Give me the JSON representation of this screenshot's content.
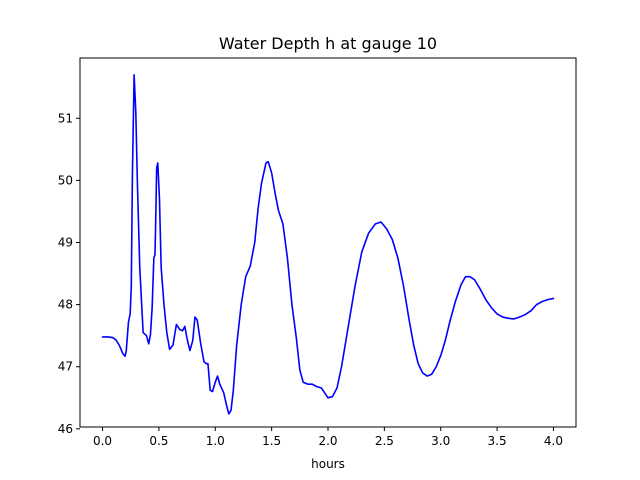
{
  "chart_data": {
    "type": "line",
    "title": "Water Depth h at gauge 10",
    "xlabel": "hours",
    "ylabel": "",
    "xlim": [
      -0.2,
      4.2
    ],
    "ylim": [
      46.03,
      51.97
    ],
    "x_ticks": [
      0.0,
      0.5,
      1.0,
      1.5,
      2.0,
      2.5,
      3.0,
      3.5,
      4.0
    ],
    "x_tick_labels": [
      "0.0",
      "0.5",
      "1.0",
      "1.5",
      "2.0",
      "2.5",
      "3.0",
      "3.5",
      "4.0"
    ],
    "y_ticks": [
      46,
      47,
      48,
      49,
      50,
      51
    ],
    "y_tick_labels": [
      "46",
      "47",
      "48",
      "49",
      "50",
      "51"
    ],
    "grid": false,
    "series": [
      {
        "color": "#0000ff",
        "points": [
          [
            0.0,
            47.48
          ],
          [
            0.05,
            47.48
          ],
          [
            0.09,
            47.47
          ],
          [
            0.12,
            47.43
          ],
          [
            0.15,
            47.34
          ],
          [
            0.18,
            47.21
          ],
          [
            0.2,
            47.17
          ],
          [
            0.21,
            47.25
          ],
          [
            0.23,
            47.72
          ],
          [
            0.245,
            47.85
          ],
          [
            0.255,
            48.3
          ],
          [
            0.265,
            50.1
          ],
          [
            0.28,
            51.7
          ],
          [
            0.295,
            51.1
          ],
          [
            0.31,
            49.9
          ],
          [
            0.33,
            48.6
          ],
          [
            0.36,
            47.55
          ],
          [
            0.39,
            47.5
          ],
          [
            0.41,
            47.37
          ],
          [
            0.425,
            47.52
          ],
          [
            0.44,
            47.95
          ],
          [
            0.455,
            48.75
          ],
          [
            0.465,
            48.8
          ],
          [
            0.47,
            49.2
          ],
          [
            0.48,
            50.2
          ],
          [
            0.49,
            50.28
          ],
          [
            0.505,
            49.7
          ],
          [
            0.52,
            48.6
          ],
          [
            0.545,
            48.0
          ],
          [
            0.57,
            47.55
          ],
          [
            0.595,
            47.28
          ],
          [
            0.625,
            47.35
          ],
          [
            0.655,
            47.68
          ],
          [
            0.685,
            47.6
          ],
          [
            0.71,
            47.58
          ],
          [
            0.73,
            47.65
          ],
          [
            0.75,
            47.45
          ],
          [
            0.775,
            47.26
          ],
          [
            0.8,
            47.42
          ],
          [
            0.82,
            47.8
          ],
          [
            0.84,
            47.75
          ],
          [
            0.87,
            47.38
          ],
          [
            0.9,
            47.08
          ],
          [
            0.92,
            47.05
          ],
          [
            0.935,
            47.05
          ],
          [
            0.955,
            46.62
          ],
          [
            0.975,
            46.6
          ],
          [
            1.0,
            46.75
          ],
          [
            1.02,
            46.85
          ],
          [
            1.04,
            46.72
          ],
          [
            1.075,
            46.58
          ],
          [
            1.1,
            46.38
          ],
          [
            1.12,
            46.24
          ],
          [
            1.14,
            46.3
          ],
          [
            1.16,
            46.62
          ],
          [
            1.19,
            47.35
          ],
          [
            1.23,
            48.0
          ],
          [
            1.27,
            48.45
          ],
          [
            1.31,
            48.62
          ],
          [
            1.35,
            49.0
          ],
          [
            1.38,
            49.55
          ],
          [
            1.41,
            49.95
          ],
          [
            1.45,
            50.28
          ],
          [
            1.47,
            50.3
          ],
          [
            1.5,
            50.12
          ],
          [
            1.53,
            49.8
          ],
          [
            1.56,
            49.52
          ],
          [
            1.6,
            49.3
          ],
          [
            1.64,
            48.75
          ],
          [
            1.68,
            48.0
          ],
          [
            1.72,
            47.45
          ],
          [
            1.75,
            46.95
          ],
          [
            1.78,
            46.75
          ],
          [
            1.82,
            46.72
          ],
          [
            1.86,
            46.72
          ],
          [
            1.9,
            46.68
          ],
          [
            1.94,
            46.66
          ],
          [
            1.97,
            46.58
          ],
          [
            2.0,
            46.5
          ],
          [
            2.04,
            46.52
          ],
          [
            2.08,
            46.66
          ],
          [
            2.12,
            47.0
          ],
          [
            2.18,
            47.65
          ],
          [
            2.24,
            48.3
          ],
          [
            2.3,
            48.85
          ],
          [
            2.36,
            49.15
          ],
          [
            2.42,
            49.3
          ],
          [
            2.47,
            49.33
          ],
          [
            2.52,
            49.22
          ],
          [
            2.57,
            49.05
          ],
          [
            2.62,
            48.75
          ],
          [
            2.67,
            48.3
          ],
          [
            2.72,
            47.75
          ],
          [
            2.76,
            47.35
          ],
          [
            2.8,
            47.05
          ],
          [
            2.84,
            46.9
          ],
          [
            2.88,
            46.85
          ],
          [
            2.92,
            46.88
          ],
          [
            2.96,
            47.0
          ],
          [
            3.0,
            47.18
          ],
          [
            3.04,
            47.42
          ],
          [
            3.08,
            47.72
          ],
          [
            3.13,
            48.05
          ],
          [
            3.18,
            48.32
          ],
          [
            3.22,
            48.45
          ],
          [
            3.26,
            48.45
          ],
          [
            3.3,
            48.4
          ],
          [
            3.35,
            48.25
          ],
          [
            3.4,
            48.08
          ],
          [
            3.45,
            47.95
          ],
          [
            3.5,
            47.85
          ],
          [
            3.55,
            47.8
          ],
          [
            3.6,
            47.78
          ],
          [
            3.65,
            47.77
          ],
          [
            3.7,
            47.8
          ],
          [
            3.75,
            47.84
          ],
          [
            3.8,
            47.9
          ],
          [
            3.85,
            48.0
          ],
          [
            3.9,
            48.05
          ],
          [
            3.95,
            48.08
          ],
          [
            4.0,
            48.1
          ]
        ]
      }
    ]
  }
}
